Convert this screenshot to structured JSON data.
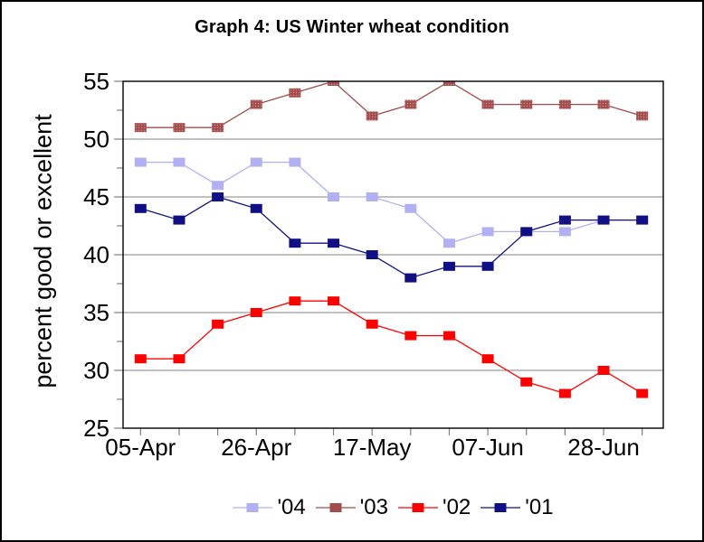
{
  "title": "Graph 4: US Winter wheat condition",
  "colors": {
    "background": "#ffffff",
    "axis": "#000000",
    "grid": "#808080",
    "tick": "#808080",
    "text": "#000000"
  },
  "legend": {
    "position": "bottom",
    "items": [
      "'04",
      "'03",
      "'02",
      "'01"
    ]
  },
  "chart_data": {
    "type": "line",
    "title": "Graph 4: US Winter wheat condition",
    "ylabel": "percent good or excellent",
    "xlabel": "",
    "ylim": [
      25,
      55
    ],
    "y_major_step": 5,
    "y_minor_step": 2.5,
    "grid": "horizontal-major",
    "legend_position": "bottom",
    "n_points": 14,
    "x_tick_labels": [
      {
        "label": "05-Apr",
        "index": 0
      },
      {
        "label": "26-Apr",
        "index": 3
      },
      {
        "label": "17-May",
        "index": 6
      },
      {
        "label": "07-Jun",
        "index": 9
      },
      {
        "label": "28-Jun",
        "index": 12
      }
    ],
    "series": [
      {
        "name": "'04",
        "color": "#b0b0f2",
        "values": [
          48,
          48,
          46,
          48,
          48,
          45,
          45,
          44,
          41,
          42,
          42,
          42,
          43,
          43
        ]
      },
      {
        "name": "'03",
        "color": "#a24c4c",
        "marker_texture": "speckled",
        "values": [
          51,
          51,
          51,
          53,
          54,
          55,
          52,
          53,
          55,
          53,
          53,
          53,
          53,
          52
        ]
      },
      {
        "name": "'02",
        "color": "#ff0000",
        "values": [
          31,
          31,
          34,
          35,
          36,
          36,
          34,
          33,
          33,
          31,
          29,
          28,
          30,
          28
        ]
      },
      {
        "name": "'01",
        "color": "#101084",
        "values": [
          44,
          43,
          45,
          44,
          41,
          41,
          40,
          38,
          39,
          39,
          42,
          43,
          43,
          43
        ]
      }
    ]
  }
}
